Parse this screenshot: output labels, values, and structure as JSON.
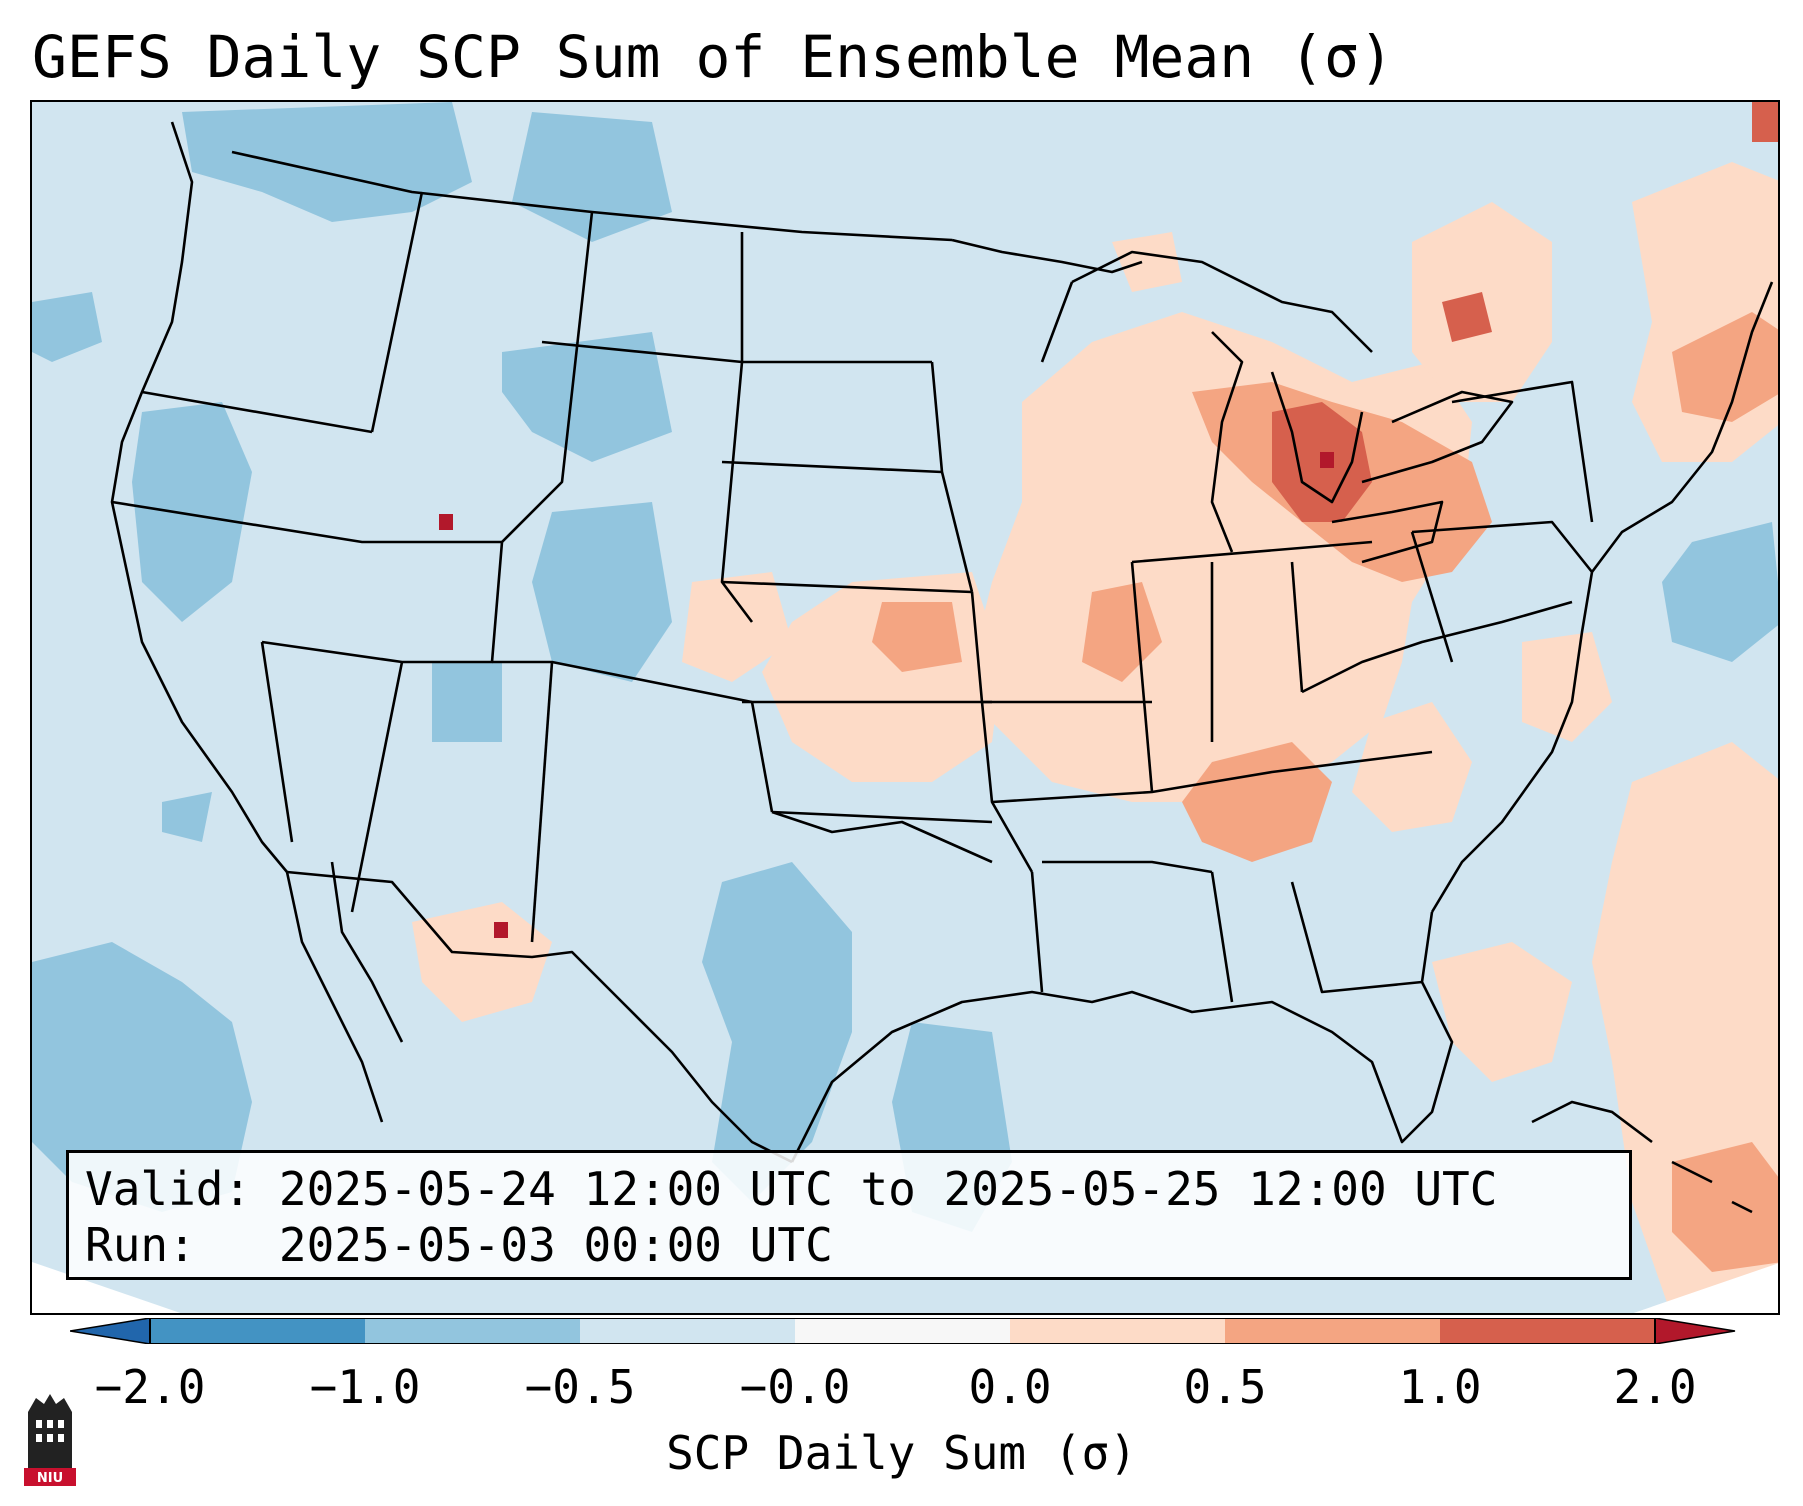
{
  "title": "GEFS Daily SCP Sum of Ensemble Mean (σ)",
  "valid_label": "Valid:",
  "valid_value": "2025-05-24 12:00 UTC to 2025-05-25 12:00 UTC",
  "run_label": "Run:",
  "run_value": "2025-05-03 00:00 UTC",
  "colorbar": {
    "label": "SCP Daily Sum (σ)",
    "ticks": [
      "−2.0",
      "−1.0",
      "−0.5",
      "−0.0",
      "0.0",
      "0.5",
      "1.0",
      "2.0"
    ],
    "colors": [
      "#2166ac",
      "#4393c3",
      "#92c5de",
      "#d1e5f0",
      "#f7f7f7",
      "#fddbc7",
      "#f4a582",
      "#d6604d",
      "#b2182b"
    ]
  },
  "logo_text": "NIU"
}
